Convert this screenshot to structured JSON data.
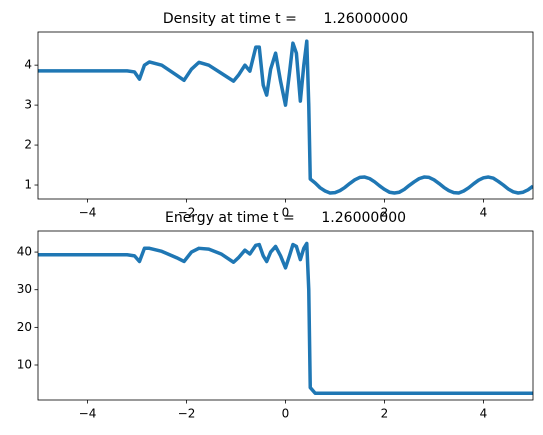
{
  "chart_data": [
    {
      "type": "line",
      "title": "Density at time t =      1.26000000",
      "x": [
        -5,
        -3.2,
        -3.05,
        -2.95,
        -2.85,
        -2.75,
        -2.5,
        -2.2,
        -2.05,
        -1.9,
        -1.75,
        -1.55,
        -1.3,
        -1.05,
        -0.95,
        -0.82,
        -0.72,
        -0.6,
        -0.53,
        -0.45,
        -0.38,
        -0.3,
        -0.2,
        -0.1,
        0,
        0.08,
        0.15,
        0.22,
        0.3,
        0.37,
        0.43,
        0.47,
        0.5,
        0.6,
        0.7,
        0.8,
        0.9,
        1.0,
        1.1,
        1.2,
        1.3,
        1.4,
        1.5,
        1.6,
        1.7,
        1.8,
        1.9,
        2.0,
        2.1,
        2.2,
        2.3,
        2.4,
        2.5,
        2.6,
        2.7,
        2.8,
        2.9,
        3.0,
        3.1,
        3.2,
        3.3,
        3.4,
        3.5,
        3.6,
        3.7,
        3.8,
        3.9,
        4.0,
        4.1,
        4.2,
        4.3,
        4.4,
        4.5,
        4.6,
        4.7,
        4.8,
        4.9,
        5.0
      ],
      "series": [
        {
          "color": "#1f77b4",
          "values": [
            3.857,
            3.857,
            3.83,
            3.65,
            4.0,
            4.08,
            4.0,
            3.75,
            3.62,
            3.9,
            4.07,
            4.0,
            3.8,
            3.6,
            3.75,
            4.0,
            3.85,
            4.45,
            4.45,
            3.5,
            3.25,
            3.9,
            4.3,
            3.6,
            3.0,
            3.8,
            4.55,
            4.3,
            3.1,
            4.0,
            4.6,
            3.0,
            1.15,
            1.05,
            0.93,
            0.85,
            0.8,
            0.81,
            0.86,
            0.94,
            1.04,
            1.13,
            1.19,
            1.2,
            1.16,
            1.08,
            0.98,
            0.89,
            0.82,
            0.8,
            0.82,
            0.89,
            0.99,
            1.08,
            1.16,
            1.2,
            1.19,
            1.13,
            1.04,
            0.94,
            0.86,
            0.81,
            0.8,
            0.85,
            0.93,
            1.03,
            1.12,
            1.18,
            1.2,
            1.17,
            1.09,
            1.0,
            0.9,
            0.83,
            0.8,
            0.82,
            0.88,
            0.97
          ]
        }
      ],
      "xlim": [
        -5,
        5
      ],
      "ylim": [
        0.65,
        4.83
      ],
      "xticks": [
        {
          "value": -4,
          "label": "−4"
        },
        {
          "value": -2,
          "label": "−2"
        },
        0,
        2,
        4
      ],
      "yticks": [
        1,
        2,
        3,
        4
      ]
    },
    {
      "type": "line",
      "title": "Energy at time t =      1.26000000",
      "x": [
        -5,
        -3.2,
        -3.05,
        -2.95,
        -2.85,
        -2.75,
        -2.5,
        -2.2,
        -2.05,
        -1.9,
        -1.75,
        -1.55,
        -1.3,
        -1.05,
        -0.95,
        -0.82,
        -0.72,
        -0.6,
        -0.53,
        -0.45,
        -0.38,
        -0.3,
        -0.2,
        -0.1,
        0,
        0.08,
        0.15,
        0.22,
        0.3,
        0.37,
        0.43,
        0.47,
        0.5,
        0.6,
        0.7,
        0.8,
        0.9,
        1.0,
        1.1,
        1.2,
        1.3,
        1.4,
        1.5,
        1.6,
        1.7,
        1.8,
        1.9,
        2.0,
        2.1,
        2.2,
        2.3,
        2.4,
        2.5,
        2.6,
        2.7,
        2.8,
        2.9,
        3.0,
        3.1,
        3.2,
        3.3,
        3.4,
        3.5,
        3.6,
        3.7,
        3.8,
        3.9,
        4.0,
        4.1,
        4.2,
        4.3,
        4.4,
        4.5,
        4.6,
        4.7,
        4.8,
        4.9,
        5.0
      ],
      "series": [
        {
          "color": "#1f77b4",
          "values": [
            39.3,
            39.3,
            39.0,
            37.5,
            41.0,
            41.0,
            40.2,
            38.5,
            37.5,
            40.0,
            41.0,
            40.8,
            39.5,
            37.3,
            38.5,
            40.5,
            39.5,
            41.8,
            42.0,
            39.0,
            37.5,
            40.0,
            41.5,
            39.0,
            35.8,
            39.0,
            42.0,
            41.5,
            38.0,
            41.0,
            42.3,
            30.0,
            4.0,
            2.5,
            2.5,
            2.5,
            2.5,
            2.5,
            2.5,
            2.5,
            2.5,
            2.5,
            2.5,
            2.5,
            2.5,
            2.5,
            2.5,
            2.5,
            2.5,
            2.5,
            2.5,
            2.5,
            2.5,
            2.5,
            2.5,
            2.5,
            2.5,
            2.5,
            2.5,
            2.5,
            2.5,
            2.5,
            2.5,
            2.5,
            2.5,
            2.5,
            2.5,
            2.5,
            2.5,
            2.5,
            2.5,
            2.5,
            2.5,
            2.5,
            2.5,
            2.5,
            2.5,
            2.5
          ]
        }
      ],
      "xlim": [
        -5,
        5
      ],
      "ylim": [
        0.7,
        45.6
      ],
      "xticks": [
        {
          "value": -4,
          "label": "−4"
        },
        {
          "value": -2,
          "label": "−2"
        },
        0,
        2,
        4
      ],
      "yticks": [
        10,
        20,
        30,
        40
      ]
    }
  ]
}
